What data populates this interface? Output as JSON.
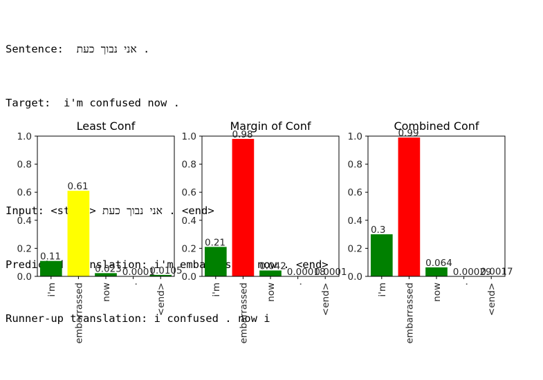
{
  "console": {
    "sentence_label": "Sentence:",
    "sentence_text": "אני נבוך כעת",
    "sentence_end": " .",
    "target_label": "Target:",
    "target_text": "i'm confused now .",
    "input_label": "Input:",
    "input_start": "<start>",
    "input_text": "אני נבוך כעת",
    "input_end": ". <end>",
    "predicted_label": "Predicted translation:",
    "predicted_text": "i'm embarrassed now . <end>",
    "runnerup_label": "Runner-up translation:",
    "runnerup_text": "i confused . now i"
  },
  "colors": {
    "green": "#008000",
    "yellow": "#ffff00",
    "red": "#ff0000"
  },
  "chart_data": [
    {
      "type": "bar",
      "title": "Least Conf",
      "categories": [
        "i'm",
        "embarrassed",
        "now",
        ".",
        "<end>"
      ],
      "values": [
        0.11,
        0.61,
        0.023,
        0.0001,
        0.0105
      ],
      "value_labels": [
        "0.11",
        "0.61",
        "0.023",
        "0.0001",
        "0.0105"
      ],
      "bar_colors": [
        "green",
        "yellow",
        "green",
        "green",
        "green"
      ],
      "ylim": [
        0,
        1.0
      ],
      "yticks": [
        "0.0",
        "0.2",
        "0.4",
        "0.6",
        "0.8",
        "1.0"
      ]
    },
    {
      "type": "bar",
      "title": "Margin of Conf",
      "categories": [
        "i'm",
        "embarrassed",
        "now",
        ".",
        "<end>"
      ],
      "values": [
        0.21,
        0.98,
        0.042,
        0.00018,
        0.0001
      ],
      "value_labels": [
        "0.21",
        "0.98",
        "0.042",
        "0.00018",
        "0.0001"
      ],
      "bar_colors": [
        "green",
        "red",
        "green",
        "green",
        "green"
      ],
      "ylim": [
        0,
        1.0
      ],
      "yticks": [
        "0.0",
        "0.2",
        "0.4",
        "0.6",
        "0.8",
        "1.0"
      ]
    },
    {
      "type": "bar",
      "title": "Combined Conf",
      "categories": [
        "i'm",
        "embarrassed",
        "now",
        ".",
        "<end>"
      ],
      "values": [
        0.3,
        0.99,
        0.064,
        0.00029,
        0.0017
      ],
      "value_labels": [
        "0.3",
        "0.99",
        "0.064",
        "0.00029",
        "0.0017"
      ],
      "bar_colors": [
        "green",
        "red",
        "green",
        "green",
        "green"
      ],
      "ylim": [
        0,
        1.0
      ],
      "yticks": [
        "0.0",
        "0.2",
        "0.4",
        "0.6",
        "0.8",
        "1.0"
      ]
    }
  ]
}
